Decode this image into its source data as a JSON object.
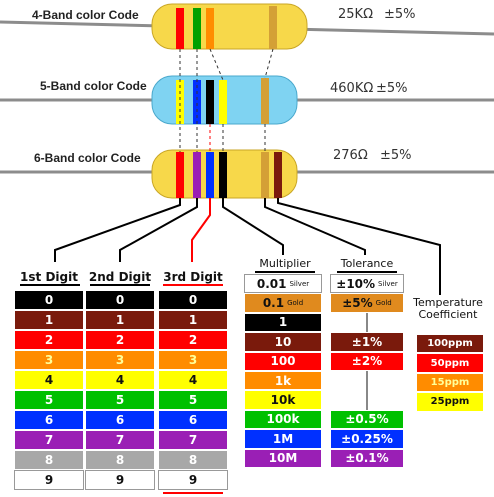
{
  "resistors": [
    {
      "label": "4-Band color Code",
      "value": "25KΩ",
      "tolerance": "±5%"
    },
    {
      "label": "5-Band color Code",
      "value": "460KΩ",
      "tolerance": "±5%"
    },
    {
      "label": "6-Band color Code",
      "value": "276Ω",
      "tolerance": "±5%"
    }
  ],
  "columns": {
    "digit1": {
      "title": "1st Digit",
      "items": [
        {
          "text": "0",
          "color": "#000000"
        },
        {
          "text": "1",
          "color": "#7a1a0c"
        },
        {
          "text": "2",
          "color": "#ff0000"
        },
        {
          "text": "3",
          "color": "#ff8c00"
        },
        {
          "text": "4",
          "color": "#ffff00"
        },
        {
          "text": "5",
          "color": "#00c000"
        },
        {
          "text": "6",
          "color": "#0030ff"
        },
        {
          "text": "7",
          "color": "#9a1fb5"
        },
        {
          "text": "8",
          "color": "#a8a8a8"
        },
        {
          "text": "9",
          "color": "#ffffff"
        }
      ]
    },
    "digit2": {
      "title": "2nd Digit",
      "items": [
        {
          "text": "0",
          "color": "#000000"
        },
        {
          "text": "1",
          "color": "#7a1a0c"
        },
        {
          "text": "2",
          "color": "#ff0000"
        },
        {
          "text": "3",
          "color": "#ff8c00"
        },
        {
          "text": "4",
          "color": "#ffff00"
        },
        {
          "text": "5",
          "color": "#00c000"
        },
        {
          "text": "6",
          "color": "#0030ff"
        },
        {
          "text": "7",
          "color": "#9a1fb5"
        },
        {
          "text": "8",
          "color": "#a8a8a8"
        },
        {
          "text": "9",
          "color": "#ffffff"
        }
      ]
    },
    "digit3": {
      "title": "3rd Digit",
      "items": [
        {
          "text": "0",
          "color": "#000000"
        },
        {
          "text": "1",
          "color": "#7a1a0c"
        },
        {
          "text": "2",
          "color": "#ff0000"
        },
        {
          "text": "3",
          "color": "#ff8c00"
        },
        {
          "text": "4",
          "color": "#ffff00"
        },
        {
          "text": "5",
          "color": "#00c000"
        },
        {
          "text": "6",
          "color": "#0030ff"
        },
        {
          "text": "7",
          "color": "#9a1fb5"
        },
        {
          "text": "8",
          "color": "#a8a8a8"
        },
        {
          "text": "9",
          "color": "#ffffff"
        }
      ]
    },
    "multiplier": {
      "title": "Multiplier",
      "items": [
        {
          "text": "0.01",
          "sub": "Silver",
          "color": "#ffffff"
        },
        {
          "text": "0.1",
          "sub": "Gold",
          "color": "#e08a1e"
        },
        {
          "text": "1",
          "color": "#000000"
        },
        {
          "text": "10",
          "color": "#7a1a0c"
        },
        {
          "text": "100",
          "color": "#ff0000"
        },
        {
          "text": "1k",
          "color": "#ff8c00"
        },
        {
          "text": "10k",
          "color": "#ffff00"
        },
        {
          "text": "100k",
          "color": "#00c000"
        },
        {
          "text": "1M",
          "color": "#0030ff"
        },
        {
          "text": "10M",
          "color": "#9a1fb5"
        }
      ]
    },
    "tolerance": {
      "title": "Tolerance",
      "items": [
        {
          "text": "±10%",
          "sub": "Silver",
          "color": "#ffffff"
        },
        {
          "text": "±5%",
          "sub": "Gold",
          "color": "#e08a1e"
        },
        {
          "text": "±1%",
          "color": "#7a1a0c"
        },
        {
          "text": "±2%",
          "color": "#ff0000"
        },
        {
          "text": "±0.5%",
          "color": "#00c000"
        },
        {
          "text": "±0.25%",
          "color": "#0030ff"
        },
        {
          "text": "±0.1%",
          "color": "#9a1fb5"
        }
      ]
    },
    "tempco": {
      "title": "Temperature Coefficient",
      "items": [
        {
          "text": "100ppm",
          "color": "#7a1a0c"
        },
        {
          "text": "50ppm",
          "color": "#ff0000"
        },
        {
          "text": "15ppm",
          "color": "#ff8c00"
        },
        {
          "text": "25ppm",
          "color": "#ffff00"
        }
      ]
    }
  },
  "colors": {
    "body_yellow": "#f7d84a",
    "body_blue": "#7fd3f2",
    "wire": "#8c8c8c",
    "highlight_red": "#ff0000"
  }
}
